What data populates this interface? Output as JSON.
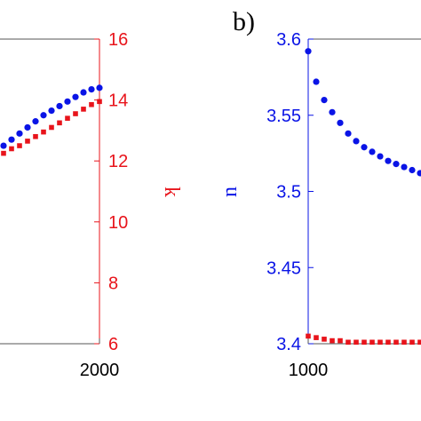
{
  "chart_data": [
    {
      "panel": "a",
      "type": "scatter",
      "xlim": [
        1000,
        2000
      ],
      "x_ticks": [
        {
          "value": 2000,
          "label": "2000"
        }
      ],
      "y_right": {
        "label": "k",
        "color": "#e8141b",
        "lim": [
          6,
          16
        ],
        "ticks": [
          {
            "value": 6,
            "label": "6"
          },
          {
            "value": 8,
            "label": "8"
          },
          {
            "value": 10,
            "label": "10"
          },
          {
            "value": 12,
            "label": "12"
          },
          {
            "value": 14,
            "label": "14"
          },
          {
            "value": 16,
            "label": "16"
          }
        ]
      },
      "series": [
        {
          "color": "#0a14e6",
          "marker": "circle",
          "axis": "right",
          "x": [
            1660,
            1680,
            1700,
            1720,
            1740,
            1760,
            1780,
            1800,
            1820,
            1840,
            1860,
            1880,
            1900,
            1920,
            1940,
            1960,
            1980,
            2000
          ],
          "y": [
            11.9,
            11.5,
            11.75,
            12.0,
            12.25,
            12.5,
            12.7,
            12.9,
            13.1,
            13.3,
            13.5,
            13.65,
            13.8,
            13.95,
            14.1,
            14.25,
            14.35,
            14.4
          ]
        },
        {
          "color": "#e8141b",
          "marker": "square",
          "axis": "right",
          "x": [
            1660,
            1680,
            1700,
            1720,
            1740,
            1760,
            1780,
            1800,
            1820,
            1840,
            1860,
            1880,
            1900,
            1920,
            1940,
            1960,
            1980,
            2000
          ],
          "y": [
            11.5,
            11.65,
            11.8,
            11.95,
            12.1,
            12.25,
            12.4,
            12.5,
            12.65,
            12.8,
            12.95,
            13.1,
            13.25,
            13.4,
            13.55,
            13.7,
            13.85,
            13.95
          ]
        }
      ]
    },
    {
      "panel": "b",
      "type": "scatter",
      "panel_label": "b)",
      "xlim": [
        1000,
        2000
      ],
      "x_ticks": [
        {
          "value": 1000,
          "label": "1000"
        }
      ],
      "y_left": {
        "label": "n",
        "color": "#0a14e6",
        "lim": [
          3.4,
          3.6
        ],
        "ticks": [
          {
            "value": 3.4,
            "label": "3.4"
          },
          {
            "value": 3.45,
            "label": "3.45"
          },
          {
            "value": 3.5,
            "label": "3.5"
          },
          {
            "value": 3.55,
            "label": "3.55"
          },
          {
            "value": 3.6,
            "label": "3.6"
          }
        ]
      },
      "series": [
        {
          "color": "#0a14e6",
          "marker": "circle",
          "axis": "left",
          "x": [
            1000,
            1020,
            1040,
            1060,
            1080,
            1100,
            1120,
            1140,
            1160,
            1180,
            1200,
            1220,
            1240,
            1260,
            1280,
            1300,
            1320,
            1340,
            1360
          ],
          "y": [
            3.592,
            3.572,
            3.56,
            3.552,
            3.545,
            3.538,
            3.533,
            3.529,
            3.526,
            3.523,
            3.52,
            3.518,
            3.516,
            3.514,
            3.512,
            3.51,
            3.509,
            3.508,
            3.506
          ]
        },
        {
          "color": "#e8141b",
          "marker": "square",
          "axis": "left",
          "x": [
            1000,
            1020,
            1040,
            1060,
            1080,
            1100,
            1120,
            1140,
            1160,
            1180,
            1200,
            1220,
            1240,
            1260,
            1280,
            1300,
            1320,
            1340,
            1360
          ],
          "y": [
            3.405,
            3.404,
            3.403,
            3.402,
            3.402,
            3.401,
            3.401,
            3.401,
            3.401,
            3.401,
            3.401,
            3.401,
            3.401,
            3.401,
            3.401,
            3.401,
            3.401,
            3.401,
            3.401
          ]
        }
      ]
    }
  ]
}
